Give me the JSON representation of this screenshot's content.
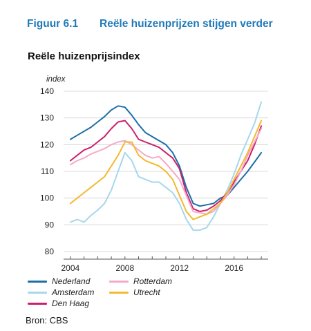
{
  "figure": {
    "number": "Figuur 6.1",
    "caption": "Reële huizenprijzen stijgen verder"
  },
  "source": "Bron: CBS",
  "chart_data": {
    "type": "line",
    "title": "Reële huizenprijsindex",
    "ylabel": "index",
    "xlabel": "",
    "xlim": [
      2003.5,
      2018.5
    ],
    "ylim": [
      80,
      140
    ],
    "yticks": [
      80,
      90,
      100,
      110,
      120,
      130,
      140
    ],
    "xticks": [
      2004,
      2008,
      2012,
      2016
    ],
    "grid": "horizontal",
    "legend_position": "bottom",
    "series": [
      {
        "name": "Nederland",
        "color": "#1a6fa6",
        "x": [
          2004,
          2004.5,
          2005,
          2005.5,
          2006,
          2006.5,
          2007,
          2007.5,
          2008,
          2008.5,
          2009,
          2009.5,
          2010,
          2010.5,
          2011,
          2011.5,
          2012,
          2012.5,
          2013,
          2013.5,
          2014,
          2014.5,
          2015,
          2015.5,
          2016,
          2016.5,
          2017,
          2017.5,
          2018
        ],
        "y": [
          122,
          123.5,
          125,
          126.5,
          128.5,
          130.5,
          133,
          134.5,
          134,
          131,
          127.5,
          124.5,
          123,
          121.5,
          120,
          117,
          112,
          104,
          98,
          97,
          97.5,
          98,
          100,
          101,
          104,
          107,
          110,
          113.5,
          117
        ]
      },
      {
        "name": "Amsterdam",
        "color": "#a6d7ec",
        "x": [
          2004,
          2004.5,
          2005,
          2005.5,
          2006,
          2006.5,
          2007,
          2007.5,
          2008,
          2008.5,
          2009,
          2009.5,
          2010,
          2010.5,
          2011,
          2011.5,
          2012,
          2012.5,
          2013,
          2013.5,
          2014,
          2014.5,
          2015,
          2015.5,
          2016,
          2016.5,
          2017,
          2017.5,
          2018
        ],
        "y": [
          91,
          92,
          91,
          93.5,
          95.5,
          98,
          103,
          110,
          117,
          114,
          108,
          107,
          106,
          106,
          104,
          102,
          98,
          92,
          88,
          88,
          89,
          93,
          98,
          103,
          109,
          116,
          122,
          128,
          136
        ]
      },
      {
        "name": "Den Haag",
        "color": "#cc1f6b",
        "x": [
          2004,
          2004.5,
          2005,
          2005.5,
          2006,
          2006.5,
          2007,
          2007.5,
          2008,
          2008.5,
          2009,
          2009.5,
          2010,
          2010.5,
          2011,
          2011.5,
          2012,
          2012.5,
          2013,
          2013.5,
          2014,
          2014.5,
          2015,
          2015.5,
          2016,
          2016.5,
          2017,
          2017.5,
          2018
        ],
        "y": [
          114,
          116,
          118,
          119,
          121,
          123,
          126,
          128.5,
          129,
          126,
          122,
          121,
          120,
          119,
          117,
          115,
          111,
          102,
          96,
          95,
          95.5,
          97,
          99,
          102,
          106,
          110,
          114,
          120,
          127
        ]
      },
      {
        "name": "Rotterdam",
        "color": "#f4a9c9",
        "x": [
          2004,
          2004.5,
          2005,
          2005.5,
          2006,
          2006.5,
          2007,
          2007.5,
          2008,
          2008.5,
          2009,
          2009.5,
          2010,
          2010.5,
          2011,
          2011.5,
          2012,
          2012.5,
          2013,
          2013.5,
          2014,
          2014.5,
          2015,
          2015.5,
          2016,
          2016.5,
          2017,
          2017.5,
          2018
        ],
        "y": [
          112.5,
          114,
          115,
          116.5,
          117.5,
          118.5,
          120,
          121,
          121.5,
          120,
          118,
          116,
          115,
          115.5,
          113,
          110,
          107,
          101,
          95,
          94.5,
          94,
          95,
          98,
          101,
          105,
          110,
          116,
          121,
          126
        ]
      },
      {
        "name": "Utrecht",
        "color": "#f5b82e",
        "x": [
          2004,
          2004.5,
          2005,
          2005.5,
          2006,
          2006.5,
          2007,
          2007.5,
          2008,
          2008.5,
          2009,
          2009.5,
          2010,
          2010.5,
          2011,
          2011.5,
          2012,
          2012.5,
          2013,
          2013.5,
          2014,
          2014.5,
          2015,
          2015.5,
          2016,
          2016.5,
          2017,
          2017.5,
          2018
        ],
        "y": [
          98,
          100,
          102,
          104,
          106,
          108,
          112,
          116,
          121,
          121,
          116,
          114,
          113,
          112,
          110,
          107,
          101,
          95,
          92,
          93,
          94,
          96,
          98,
          102,
          107,
          112,
          117,
          123,
          129
        ]
      }
    ]
  }
}
